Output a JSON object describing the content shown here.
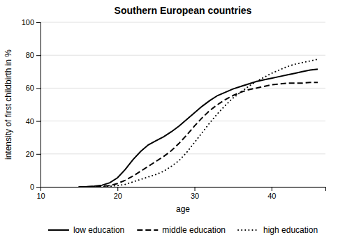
{
  "chart_data": {
    "type": "line",
    "title": "Southern European countries",
    "xlabel": "age",
    "ylabel": "intensity of first childbirth in %",
    "x": [
      15,
      16,
      17,
      18,
      19,
      20,
      21,
      22,
      23,
      24,
      25,
      26,
      27,
      28,
      29,
      30,
      31,
      32,
      33,
      34,
      35,
      36,
      37,
      38,
      39,
      40,
      41,
      42,
      43,
      44,
      45,
      46
    ],
    "series": [
      {
        "name": "low education",
        "color": "#000000",
        "line_style": "solid",
        "values": [
          0,
          0.1,
          0.4,
          1.0,
          2.5,
          5.5,
          10.5,
          16.5,
          21.5,
          25.5,
          28,
          30.5,
          33.5,
          37,
          41,
          45,
          49,
          52.5,
          55.5,
          57.5,
          59.5,
          61,
          62.5,
          64,
          65,
          66,
          67,
          68,
          69,
          70,
          71,
          71.5
        ]
      },
      {
        "name": "middle education",
        "color": "#000000",
        "line_style": "dashed",
        "values": [
          0,
          0,
          0.1,
          0.3,
          0.8,
          2.0,
          4.0,
          6.5,
          9.5,
          12.5,
          15.5,
          18.5,
          22,
          26.5,
          31.5,
          37,
          42,
          46.5,
          50,
          53,
          55.5,
          57.5,
          59,
          60,
          61,
          62,
          62.5,
          63,
          63,
          63,
          63.5,
          63.5
        ]
      },
      {
        "name": "high education",
        "color": "#000000",
        "line_style": "dotted",
        "values": [
          0,
          0,
          0,
          0.1,
          0.3,
          0.8,
          1.5,
          3.0,
          4.5,
          6.0,
          7.5,
          9.5,
          12.5,
          16,
          21,
          27,
          33,
          39,
          44.5,
          49.5,
          54,
          57.5,
          61,
          64,
          66.5,
          69,
          71,
          73,
          74.5,
          75.5,
          76.5,
          77.5
        ]
      }
    ],
    "xlim": [
      10,
      47
    ],
    "ylim": [
      0,
      100
    ],
    "xticks": [
      10,
      20,
      30,
      40
    ],
    "yticks": [
      0,
      20,
      40,
      60,
      80,
      100
    ],
    "grid": "y",
    "legend": "bottom"
  }
}
